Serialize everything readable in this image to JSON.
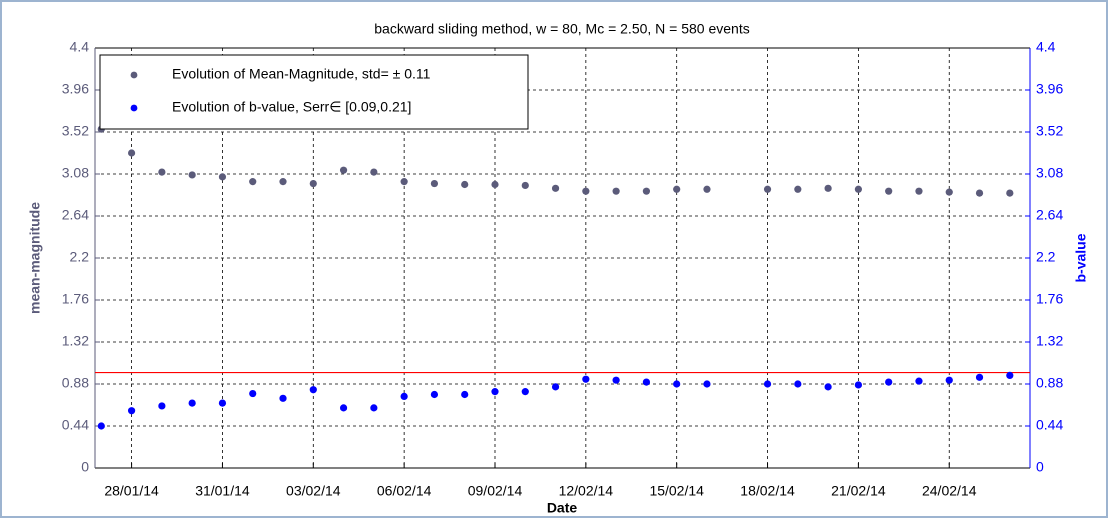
{
  "chart_data": {
    "type": "scatter",
    "title": "backward sliding method, w = 80, Mc = 2.50, N = 580 events",
    "x_label": "Date",
    "y_label": "mean-magnitude",
    "y2_label": "b-value",
    "x": [
      "2014-01-27",
      "2014-01-28",
      "2014-01-29",
      "2014-01-30",
      "2014-01-31",
      "2014-02-01",
      "2014-02-02",
      "2014-02-03",
      "2014-02-04",
      "2014-02-05",
      "2014-02-06",
      "2014-02-07",
      "2014-02-08",
      "2014-02-09",
      "2014-02-10",
      "2014-02-11",
      "2014-02-12",
      "2014-02-13",
      "2014-02-14",
      "2014-02-15",
      "2014-02-16",
      "2014-02-18",
      "2014-02-19",
      "2014-02-20",
      "2014-02-21",
      "2014-02-22",
      "2014-02-23",
      "2014-02-24",
      "2014-02-25",
      "2014-02-26"
    ],
    "series": [
      {
        "name": "Evolution of Mean-Magnitude, std= ± 0.11",
        "color": "#5b5b7a",
        "values": [
          3.55,
          3.3,
          3.1,
          3.07,
          3.05,
          3.0,
          3.0,
          2.98,
          3.12,
          3.1,
          3.0,
          2.98,
          2.97,
          2.97,
          2.96,
          2.93,
          2.9,
          2.9,
          2.9,
          2.92,
          2.92,
          2.92,
          2.92,
          2.93,
          2.92,
          2.9,
          2.9,
          2.89,
          2.88,
          2.88
        ]
      },
      {
        "name": "Evolution of b-value, Serr∈ [0.09,0.21]",
        "color": "#0000ff",
        "axis": "y2",
        "values": [
          0.44,
          0.6,
          0.65,
          0.68,
          0.68,
          0.78,
          0.73,
          0.82,
          0.63,
          0.63,
          0.75,
          0.77,
          0.77,
          0.8,
          0.8,
          0.85,
          0.93,
          0.92,
          0.9,
          0.88,
          0.88,
          0.88,
          0.88,
          0.85,
          0.87,
          0.9,
          0.91,
          0.92,
          0.95,
          0.97
        ]
      }
    ],
    "reference_line": {
      "value": 1.0,
      "color": "#ff0000",
      "axis": "y2"
    },
    "xlim": [
      "2014-01-26T19:00:00Z",
      "2014-02-26T16:00:00Z"
    ],
    "xticks": [
      {
        "value": "2014-01-28",
        "label": "28/01/14"
      },
      {
        "value": "2014-01-31",
        "label": "31/01/14"
      },
      {
        "value": "2014-02-03",
        "label": "03/02/14"
      },
      {
        "value": "2014-02-06",
        "label": "06/02/14"
      },
      {
        "value": "2014-02-09",
        "label": "09/02/14"
      },
      {
        "value": "2014-02-12",
        "label": "12/02/14"
      },
      {
        "value": "2014-02-15",
        "label": "15/02/14"
      },
      {
        "value": "2014-02-18",
        "label": "18/02/14"
      },
      {
        "value": "2014-02-21",
        "label": "21/02/14"
      },
      {
        "value": "2014-02-24",
        "label": "24/02/14"
      }
    ],
    "ylim": [
      0,
      4.4
    ],
    "yticks": [
      0,
      0.44,
      0.88,
      1.32,
      1.76,
      2.2,
      2.64,
      3.08,
      3.52,
      3.96,
      4.4
    ],
    "y2lim": [
      0,
      4.4
    ],
    "y2ticks": [
      0,
      0.44,
      0.88,
      1.32,
      1.76,
      2.2,
      2.64,
      3.08,
      3.52,
      3.96,
      4.4
    ],
    "grid": true,
    "legend": "upper left"
  }
}
